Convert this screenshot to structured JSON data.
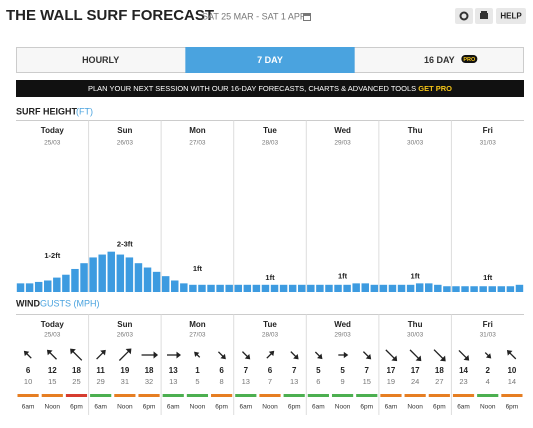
{
  "header": {
    "title": "THE WALL SURF FORECAST",
    "dates": "SAT 25 MAR - SAT 1 APR",
    "help": "HELP"
  },
  "tabs": {
    "items": [
      "HOURLY",
      "7 DAY",
      "16 DAY"
    ],
    "active": 1,
    "pro_badge": "PRO"
  },
  "banner": {
    "text": "PLAN YOUR NEXT SESSION WITH OUR 16-DAY FORECASTS, CHARTS & ADVANCED TOOLS",
    "link": "GET PRO"
  },
  "days": [
    {
      "name": "Today",
      "date": "25/03"
    },
    {
      "name": "Sun",
      "date": "26/03"
    },
    {
      "name": "Mon",
      "date": "27/03"
    },
    {
      "name": "Tue",
      "date": "28/03"
    },
    {
      "name": "Wed",
      "date": "29/03"
    },
    {
      "name": "Thu",
      "date": "30/03"
    },
    {
      "name": "Fri",
      "date": "31/03"
    }
  ],
  "surf": {
    "type": "bar",
    "title": "SURF HEIGHT",
    "unit": "(FT)",
    "color": "#3d9be0",
    "ylim": [
      0,
      10
    ],
    "values": [
      0.6,
      0.6,
      0.7,
      0.8,
      1.0,
      1.2,
      1.6,
      2.0,
      2.4,
      2.6,
      2.8,
      2.6,
      2.4,
      2.0,
      1.7,
      1.4,
      1.1,
      0.8,
      0.6,
      0.5,
      0.5,
      0.5,
      0.5,
      0.5,
      0.5,
      0.5,
      0.5,
      0.5,
      0.5,
      0.5,
      0.5,
      0.5,
      0.5,
      0.5,
      0.5,
      0.5,
      0.5,
      0.6,
      0.6,
      0.5,
      0.5,
      0.5,
      0.5,
      0.5,
      0.6,
      0.6,
      0.5,
      0.4,
      0.4,
      0.4,
      0.4,
      0.4,
      0.4,
      0.4,
      0.4,
      0.5
    ],
    "day_labels": [
      "1-2ft",
      "2-3ft",
      "1ft",
      "1ft",
      "1ft",
      "1ft",
      "1ft"
    ]
  },
  "wind": {
    "title": "WIND",
    "unit": "GUSTS (MPH)",
    "times": [
      "6am",
      "Noon",
      "6pm"
    ],
    "speeds": [
      6,
      12,
      18,
      11,
      19,
      18,
      13,
      1,
      6,
      7,
      6,
      7,
      5,
      5,
      7,
      17,
      17,
      18,
      14,
      2,
      10
    ],
    "gusts": [
      10,
      15,
      25,
      29,
      31,
      32,
      13,
      5,
      8,
      13,
      7,
      13,
      6,
      9,
      15,
      19,
      24,
      27,
      23,
      4,
      14
    ],
    "directions": [
      315,
      315,
      315,
      45,
      45,
      90,
      90,
      315,
      135,
      135,
      45,
      135,
      135,
      90,
      135,
      135,
      135,
      135,
      135,
      135,
      315
    ],
    "ratings": [
      "#e67e22",
      "#e67e22",
      "#d63c2f",
      "#4caf50",
      "#e67e22",
      "#e67e22",
      "#4caf50",
      "#4caf50",
      "#e67e22",
      "#4caf50",
      "#e67e22",
      "#4caf50",
      "#4caf50",
      "#4caf50",
      "#4caf50",
      "#e67e22",
      "#e67e22",
      "#e67e22",
      "#e67e22",
      "#4caf50",
      "#e67e22"
    ]
  }
}
